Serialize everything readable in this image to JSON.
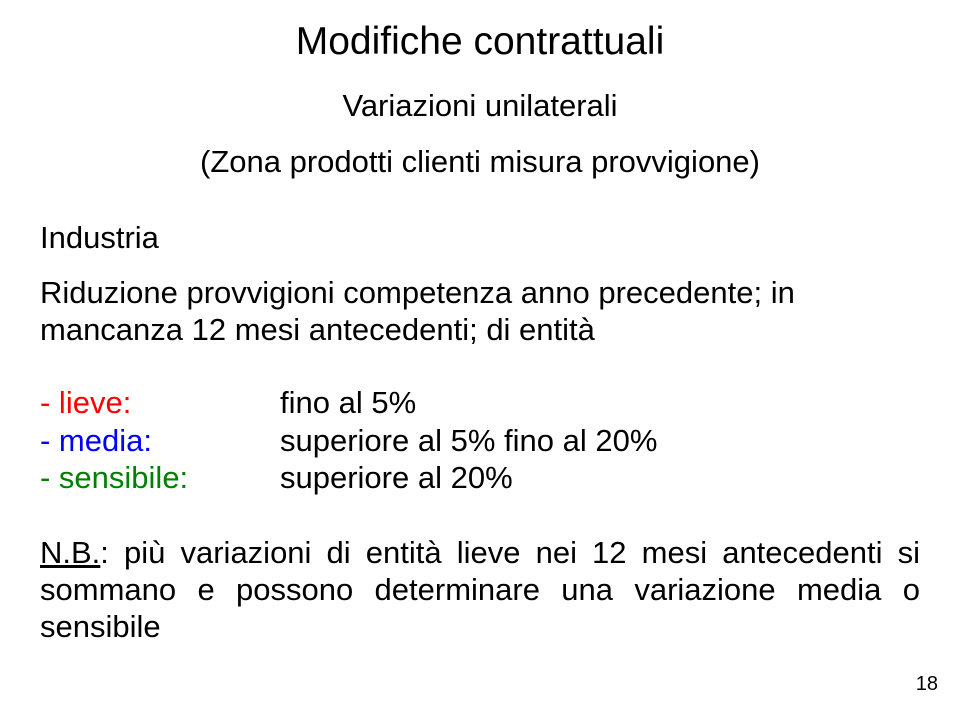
{
  "title": "Modifiche contrattuali",
  "subtitle": "Variazioni unilaterali",
  "paren": "(Zona prodotti clienti misura provvigione)",
  "heading_industria": "Industria",
  "body_riduzione": "Riduzione provvigioni competenza anno precedente; in mancanza 12 mesi antecedenti; di entità",
  "levels": {
    "lieve": {
      "label": "- lieve:",
      "value": "fino al 5%",
      "color": "#ff0000"
    },
    "media": {
      "label": "- media:",
      "value": "superiore al 5% fino al 20%",
      "color": "#0000ff"
    },
    "sensibile": {
      "label": "- sensibile:",
      "value": "superiore al 20%",
      "color": "#008000"
    }
  },
  "note_prefix": "N.B.",
  "note_rest": ": più variazioni di entità lieve nei 12 mesi antecedenti si sommano e possono determinare una variazione media o sensibile",
  "page_number": "18",
  "colors": {
    "text": "#000000",
    "red": "#ff0000",
    "blue": "#0000ff",
    "green": "#008000",
    "background": "#ffffff"
  },
  "typography": {
    "title_fontsize_pt": 30,
    "body_fontsize_pt": 24,
    "pagenum_fontsize_pt": 15,
    "font_family": "Arial"
  }
}
